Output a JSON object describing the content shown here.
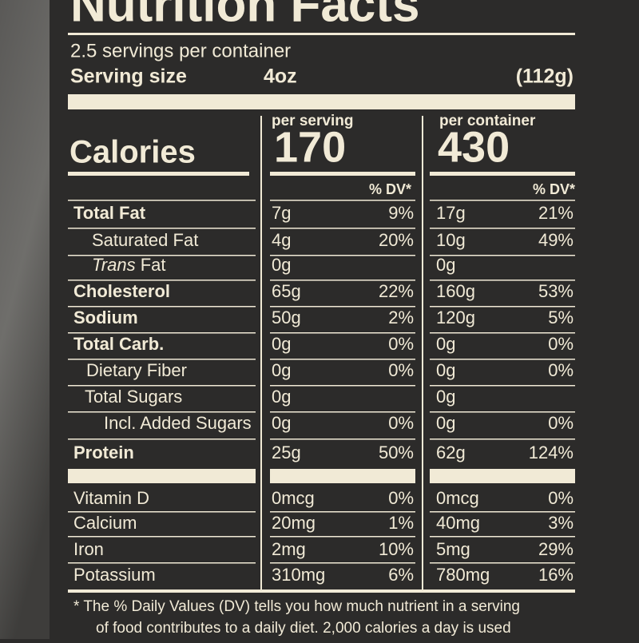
{
  "header": {
    "title": "Nutrition Facts",
    "servings": "2.5 servings per container",
    "serving_size_label": "Serving size",
    "serving_size": "4oz",
    "serving_weight": "(112g)"
  },
  "calories": {
    "label": "Calories",
    "per_serving_label": "per serving",
    "per_serving": "170",
    "per_container_label": "per container",
    "per_container": "430",
    "dv_header_serving": "% DV*",
    "dv_header_container": "% DV*"
  },
  "nutrients": [
    {
      "name": "Total Fat",
      "serving_amount": "7g",
      "serving_dv": "9%",
      "container_amount": "17g",
      "container_dv": "21%"
    },
    {
      "name": "Saturated Fat",
      "serving_amount": "4g",
      "serving_dv": "20%",
      "container_amount": "10g",
      "container_dv": "49%"
    },
    {
      "name_italic": "Trans",
      "name": "Fat",
      "serving_amount": "0g",
      "container_amount": "0g"
    },
    {
      "name": "Cholesterol",
      "serving_amount": "65g",
      "serving_dv": "22%",
      "container_amount": "160g",
      "container_dv": "53%"
    },
    {
      "name": "Sodium",
      "serving_amount": "50g",
      "serving_dv": "2%",
      "container_amount": "120g",
      "container_dv": "5%"
    },
    {
      "name": "Total Carb.",
      "serving_amount": "0g",
      "serving_dv": "0%",
      "container_amount": "0g",
      "container_dv": "0%"
    },
    {
      "name": "Dietary Fiber",
      "serving_amount": "0g",
      "serving_dv": "0%",
      "container_amount": "0g",
      "container_dv": "0%"
    },
    {
      "name": "Total Sugars",
      "serving_amount": "0g",
      "container_amount": "0g"
    },
    {
      "name": "Incl. Added Sugars",
      "serving_amount": "0g",
      "serving_dv": "0%",
      "container_amount": "0g",
      "container_dv": "0%"
    },
    {
      "name": "Protein",
      "serving_amount": "25g",
      "serving_dv": "50%",
      "container_amount": "62g",
      "container_dv": "124%"
    }
  ],
  "vitamins": [
    {
      "name": "Vitamin D",
      "serving_amount": "0mcg",
      "serving_dv": "0%",
      "container_amount": "0mcg",
      "container_dv": "0%"
    },
    {
      "name": "Calcium",
      "serving_amount": "20mg",
      "serving_dv": "1%",
      "container_amount": "40mg",
      "container_dv": "3%"
    },
    {
      "name": "Iron",
      "serving_amount": "2mg",
      "serving_dv": "10%",
      "container_amount": "5mg",
      "container_dv": "29%"
    },
    {
      "name": "Potassium",
      "serving_amount": "310mg",
      "serving_dv": "6%",
      "container_amount": "780mg",
      "container_dv": "16%"
    }
  ],
  "footnote": [
    "* The % Daily Values (DV) tells you how much nutrient in a serving",
    "of food contributes to a daily diet. 2,000 calories a day is used"
  ]
}
